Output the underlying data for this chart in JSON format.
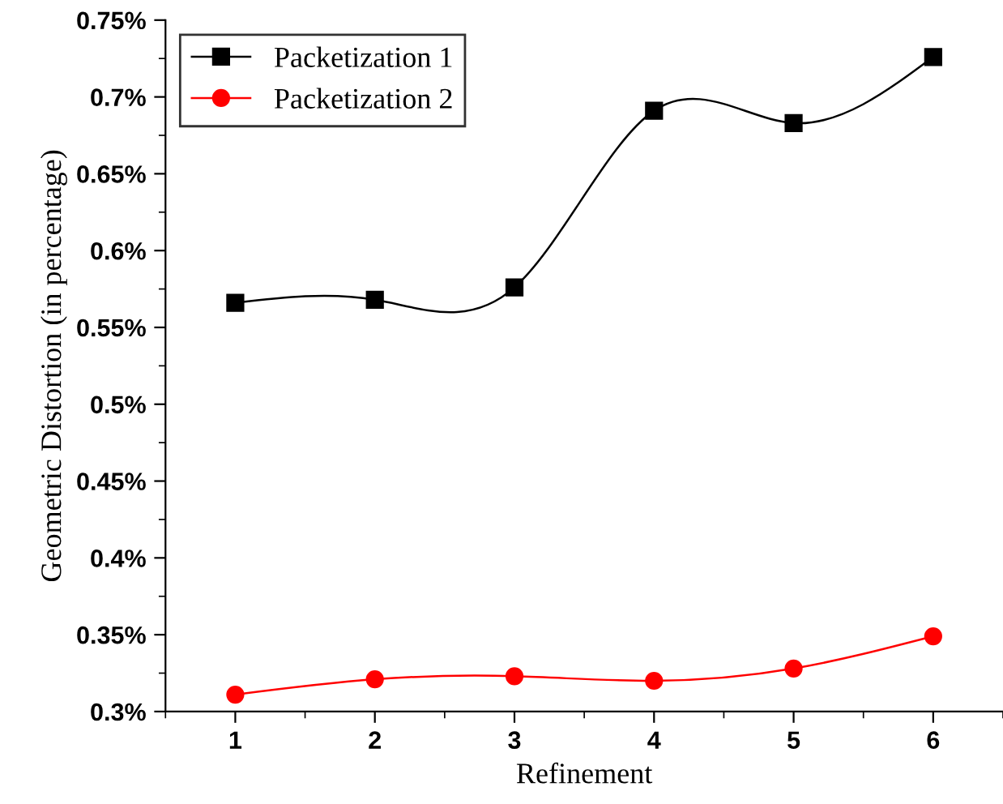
{
  "chart_data": {
    "type": "line",
    "xlabel": "Refinement",
    "ylabel": "Geometric Distortion (in percentage)",
    "x": [
      1,
      2,
      3,
      4,
      5,
      6
    ],
    "series": [
      {
        "name": "Packetization 1",
        "color": "#000000",
        "marker": "square",
        "values": [
          0.566,
          0.568,
          0.576,
          0.691,
          0.683,
          0.726
        ]
      },
      {
        "name": "Packetization 2",
        "color": "#ff0000",
        "marker": "circle",
        "values": [
          0.311,
          0.321,
          0.323,
          0.32,
          0.328,
          0.349
        ]
      }
    ],
    "xlim": [
      0.5,
      6.5
    ],
    "xticks": [
      1,
      2,
      3,
      4,
      5,
      6
    ],
    "ylim": [
      0.3,
      0.75
    ],
    "yticks": [
      {
        "value": 0.3,
        "label": "0.3%"
      },
      {
        "value": 0.35,
        "label": "0.35%"
      },
      {
        "value": 0.4,
        "label": "0.4%"
      },
      {
        "value": 0.45,
        "label": "0.45%"
      },
      {
        "value": 0.5,
        "label": "0.5%"
      },
      {
        "value": 0.55,
        "label": "0.55%"
      },
      {
        "value": 0.6,
        "label": "0.6%"
      },
      {
        "value": 0.65,
        "label": "0.65%"
      },
      {
        "value": 0.7,
        "label": "0.7%"
      },
      {
        "value": 0.75,
        "label": "0.75%"
      }
    ],
    "grid": false,
    "legend": "top left"
  }
}
